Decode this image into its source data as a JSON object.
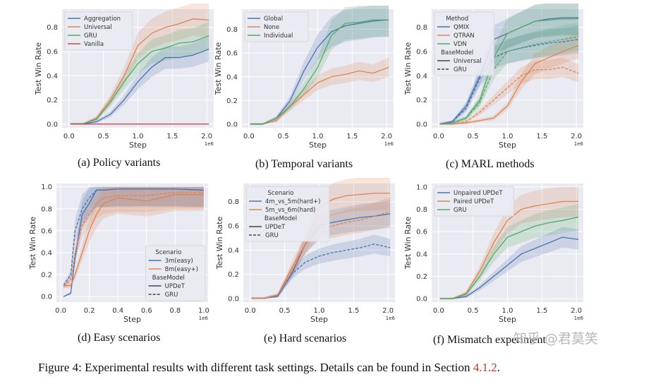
{
  "colors": {
    "blue": "#4c72b0",
    "orange": "#dd8452",
    "green": "#55a868",
    "red": "#c44e52",
    "plot_bg": "#eaeaf2"
  },
  "captions": [
    "(a) Policy variants",
    "(b) Temporal variants",
    "(c) MARL methods",
    "(d) Easy scenarios",
    "(e) Hard scenarios",
    "(f) Mismatch experiment"
  ],
  "figure_caption": {
    "text": "Figure 4: Experimental results with different task settings. Details can be found in Section ",
    "ref": "4.1.2",
    "end": "."
  },
  "watermark": "知乎 @君莫笑",
  "chart_data": [
    {
      "type": "line",
      "xlabel": "Step",
      "ylabel": "Test Win Rate",
      "x_offset_label": "1e6",
      "xlim": [
        -0.1,
        2.1
      ],
      "ylim": [
        -0.03,
        0.95
      ],
      "xticks": [
        0.0,
        0.5,
        1.0,
        1.5,
        2.0
      ],
      "yticks": [
        0.0,
        0.2,
        0.4,
        0.6,
        0.8
      ],
      "grid": true,
      "legend_position": "top-left",
      "legend": [
        {
          "label": "Aggregation",
          "color": "#4c72b0"
        },
        {
          "label": "Universal",
          "color": "#dd8452"
        },
        {
          "label": "GRU",
          "color": "#55a868"
        },
        {
          "label": "Vanilla",
          "color": "#c44e52"
        }
      ],
      "x": [
        0.02,
        0.2,
        0.4,
        0.6,
        0.8,
        1.0,
        1.2,
        1.4,
        1.6,
        1.8,
        2.03
      ],
      "series": [
        {
          "name": "Aggregation",
          "color": "#4c72b0",
          "dash": false,
          "values": [
            0,
            0,
            0.02,
            0.08,
            0.2,
            0.35,
            0.47,
            0.55,
            0.55,
            0.57,
            0.62
          ]
        },
        {
          "name": "Universal",
          "color": "#dd8452",
          "dash": false,
          "values": [
            0,
            0,
            0.05,
            0.2,
            0.4,
            0.65,
            0.75,
            0.8,
            0.83,
            0.87,
            0.86
          ]
        },
        {
          "name": "GRU",
          "color": "#55a868",
          "dash": false,
          "values": [
            0,
            0,
            0.04,
            0.18,
            0.35,
            0.5,
            0.6,
            0.63,
            0.67,
            0.68,
            0.73
          ]
        },
        {
          "name": "Vanilla",
          "color": "#c44e52",
          "dash": false,
          "values": [
            0,
            0,
            0,
            0,
            0,
            0,
            0,
            0,
            0,
            0,
            0
          ]
        }
      ]
    },
    {
      "type": "line",
      "xlabel": "Step",
      "ylabel": "Test Win Rate",
      "x_offset_label": "1e6",
      "xlim": [
        -0.1,
        2.1
      ],
      "ylim": [
        -0.03,
        0.97
      ],
      "xticks": [
        0.0,
        0.5,
        1.0,
        1.5,
        2.0
      ],
      "yticks": [
        0.0,
        0.2,
        0.4,
        0.6,
        0.8
      ],
      "grid": true,
      "legend_position": "top-left",
      "legend": [
        {
          "label": "Global",
          "color": "#4c72b0"
        },
        {
          "label": "None",
          "color": "#dd8452"
        },
        {
          "label": "Individual",
          "color": "#55a868"
        }
      ],
      "x": [
        0.02,
        0.2,
        0.4,
        0.6,
        0.8,
        1.0,
        1.2,
        1.4,
        1.6,
        1.8,
        2.03
      ],
      "series": [
        {
          "name": "Global",
          "color": "#4c72b0",
          "dash": false,
          "values": [
            0,
            0,
            0.05,
            0.2,
            0.45,
            0.65,
            0.78,
            0.83,
            0.85,
            0.87,
            0.88
          ]
        },
        {
          "name": "None",
          "color": "#dd8452",
          "dash": false,
          "values": [
            0,
            0,
            0.03,
            0.15,
            0.25,
            0.35,
            0.4,
            0.42,
            0.45,
            0.43,
            0.48
          ]
        },
        {
          "name": "Individual",
          "color": "#55a868",
          "dash": false,
          "values": [
            0,
            0,
            0.05,
            0.15,
            0.3,
            0.48,
            0.75,
            0.85,
            0.86,
            0.88,
            0.88
          ]
        }
      ]
    },
    {
      "type": "line",
      "xlabel": "Step",
      "ylabel": "Test Win Rate",
      "x_offset_label": "1e6",
      "xlim": [
        -0.1,
        2.1
      ],
      "ylim": [
        -0.03,
        0.95
      ],
      "xticks": [
        0.0,
        0.5,
        1.0,
        1.5,
        2.0
      ],
      "yticks": [
        0.0,
        0.2,
        0.4,
        0.6,
        0.8
      ],
      "grid": true,
      "legend_position": "top-left",
      "legend": [
        {
          "label": "Method",
          "title": true
        },
        {
          "label": "QMIX",
          "color": "#4c72b0"
        },
        {
          "label": "QTRAN",
          "color": "#dd8452"
        },
        {
          "label": "VDN",
          "color": "#55a868"
        },
        {
          "label": "BaseModel",
          "title": true
        },
        {
          "label": "Universal",
          "color": "#444444"
        },
        {
          "label": "GRU",
          "color": "#444444",
          "dash": true
        }
      ],
      "x": [
        0.02,
        0.2,
        0.4,
        0.6,
        0.8,
        1.0,
        1.2,
        1.4,
        1.6,
        1.8,
        2.03
      ],
      "series": [
        {
          "name": "QMIX Universal",
          "color": "#4c72b0",
          "dash": false,
          "values": [
            0,
            0.02,
            0.15,
            0.4,
            0.7,
            0.75,
            0.8,
            0.85,
            0.87,
            0.88,
            0.88
          ]
        },
        {
          "name": "QMIX GRU",
          "color": "#4c72b0",
          "dash": true,
          "values": [
            0,
            0.02,
            0.13,
            0.38,
            0.55,
            0.6,
            0.63,
            0.65,
            0.67,
            0.68,
            0.7
          ]
        },
        {
          "name": "QTRAN Universal",
          "color": "#dd8452",
          "dash": false,
          "values": [
            0,
            0,
            0.01,
            0.03,
            0.05,
            0.15,
            0.35,
            0.5,
            0.55,
            0.6,
            0.65
          ]
        },
        {
          "name": "QTRAN GRU",
          "color": "#dd8452",
          "dash": true,
          "values": [
            0,
            0,
            0.02,
            0.1,
            0.2,
            0.3,
            0.4,
            0.45,
            0.45,
            0.47,
            0.42
          ]
        },
        {
          "name": "VDN Universal",
          "color": "#55a868",
          "dash": false,
          "values": [
            0,
            0.01,
            0.05,
            0.2,
            0.55,
            0.75,
            0.8,
            0.85,
            0.86,
            0.87,
            0.87
          ]
        },
        {
          "name": "VDN GRU",
          "color": "#55a868",
          "dash": true,
          "values": [
            0,
            0.01,
            0.05,
            0.18,
            0.45,
            0.6,
            0.63,
            0.66,
            0.68,
            0.7,
            0.72
          ]
        }
      ]
    },
    {
      "type": "line",
      "xlabel": "Step",
      "ylabel": "Test Win Rate",
      "x_offset_label": "1e6",
      "xlim": [
        -0.03,
        1.03
      ],
      "ylim": [
        -0.05,
        1.03
      ],
      "xticks": [
        0.0,
        0.2,
        0.4,
        0.6,
        0.8,
        1.0
      ],
      "yticks": [
        0.0,
        0.2,
        0.4,
        0.6,
        0.8,
        1.0
      ],
      "grid": true,
      "legend_position": "bottom-right",
      "legend": [
        {
          "label": "Scenario",
          "title": true
        },
        {
          "label": "3m(easy)",
          "color": "#4c72b0"
        },
        {
          "label": "8m(easy+)",
          "color": "#dd8452"
        },
        {
          "label": "BaseModel",
          "title": true
        },
        {
          "label": "UPDeT",
          "color": "#444444"
        },
        {
          "label": "GRU",
          "color": "#444444",
          "dash": true
        }
      ],
      "x": [
        0.02,
        0.07,
        0.1,
        0.15,
        0.2,
        0.25,
        0.3,
        0.4,
        0.6,
        0.8,
        1.0
      ],
      "series": [
        {
          "name": "3m(easy) UPDeT",
          "color": "#4c72b0",
          "dash": false,
          "values": [
            0,
            0.03,
            0.35,
            0.75,
            0.85,
            0.97,
            0.97,
            0.98,
            0.98,
            0.98,
            0.97
          ]
        },
        {
          "name": "3m(easy) GRU",
          "color": "#4c72b0",
          "dash": true,
          "values": [
            0.1,
            0.2,
            0.6,
            0.8,
            0.9,
            0.97,
            0.97,
            0.98,
            0.98,
            0.98,
            0.97
          ]
        },
        {
          "name": "8m(easy+) UPDeT",
          "color": "#dd8452",
          "dash": false,
          "values": [
            0.1,
            0.1,
            0.2,
            0.4,
            0.6,
            0.75,
            0.85,
            0.9,
            0.87,
            0.93,
            0.93
          ]
        },
        {
          "name": "8m(easy+) GRU",
          "color": "#dd8452",
          "dash": true,
          "values": [
            0.1,
            0.15,
            0.4,
            0.65,
            0.75,
            0.85,
            0.9,
            0.92,
            0.92,
            0.95,
            0.95
          ]
        }
      ]
    },
    {
      "type": "line",
      "xlabel": "Step",
      "ylabel": "Test Win Rate",
      "x_offset_label": "1e6",
      "xlim": [
        -0.1,
        2.1
      ],
      "ylim": [
        -0.03,
        0.95
      ],
      "xticks": [
        0.0,
        0.5,
        1.0,
        1.5,
        2.0
      ],
      "yticks": [
        0.0,
        0.2,
        0.4,
        0.6,
        0.8
      ],
      "grid": true,
      "legend_position": "top-left",
      "legend": [
        {
          "label": "Scenario",
          "title": true
        },
        {
          "label": "4m_vs_5m(hard+)",
          "color": "#4c72b0"
        },
        {
          "label": "5m_vs_6m(hard)",
          "color": "#dd8452"
        },
        {
          "label": "BaseModel",
          "title": true
        },
        {
          "label": "UPDeT",
          "color": "#444444"
        },
        {
          "label": "GRU",
          "color": "#444444",
          "dash": true
        }
      ],
      "x": [
        0.02,
        0.2,
        0.4,
        0.6,
        0.8,
        1.0,
        1.2,
        1.4,
        1.6,
        1.8,
        2.03
      ],
      "series": [
        {
          "name": "4m_vs_5m(hard+) UPDeT",
          "color": "#4c72b0",
          "dash": false,
          "values": [
            0,
            0,
            0.02,
            0.2,
            0.45,
            0.6,
            0.63,
            0.65,
            0.67,
            0.68,
            0.7
          ]
        },
        {
          "name": "4m_vs_5m(hard+) GRU",
          "color": "#4c72b0",
          "dash": true,
          "values": [
            0,
            0,
            0.02,
            0.2,
            0.3,
            0.35,
            0.38,
            0.4,
            0.42,
            0.45,
            0.42
          ]
        },
        {
          "name": "5m_vs_6m(hard) UPDeT",
          "color": "#dd8452",
          "dash": false,
          "values": [
            0,
            0,
            0.03,
            0.25,
            0.45,
            0.75,
            0.82,
            0.85,
            0.86,
            0.87,
            0.87
          ]
        },
        {
          "name": "5m_vs_6m(hard) GRU",
          "color": "#dd8452",
          "dash": true,
          "values": [
            0,
            0,
            0.03,
            0.22,
            0.45,
            0.58,
            0.6,
            0.63,
            0.65,
            0.68,
            0.72
          ]
        }
      ]
    },
    {
      "type": "line",
      "xlabel": "Step",
      "ylabel": "Test Win Rate",
      "x_offset_label": "1e6",
      "xlim": [
        -0.1,
        2.1
      ],
      "ylim": [
        -0.03,
        1.03
      ],
      "xticks": [
        0.0,
        0.5,
        1.0,
        1.5,
        2.0
      ],
      "yticks": [
        0.0,
        0.2,
        0.4,
        0.6,
        0.8,
        1.0
      ],
      "grid": true,
      "legend_position": "top-left",
      "legend": [
        {
          "label": "Unpaired UPDeT",
          "color": "#4c72b0"
        },
        {
          "label": "Paired UPDeT",
          "color": "#dd8452"
        },
        {
          "label": "GRU",
          "color": "#55a868"
        }
      ],
      "x": [
        0.02,
        0.2,
        0.4,
        0.6,
        0.8,
        1.0,
        1.2,
        1.4,
        1.6,
        1.8,
        2.03
      ],
      "series": [
        {
          "name": "Unpaired UPDeT",
          "color": "#4c72b0",
          "dash": false,
          "values": [
            0,
            0,
            0.02,
            0.1,
            0.2,
            0.3,
            0.4,
            0.45,
            0.5,
            0.55,
            0.53
          ]
        },
        {
          "name": "Paired UPDeT",
          "color": "#dd8452",
          "dash": false,
          "values": [
            0,
            0,
            0.05,
            0.25,
            0.5,
            0.7,
            0.8,
            0.83,
            0.85,
            0.87,
            0.87
          ]
        },
        {
          "name": "GRU",
          "color": "#55a868",
          "dash": false,
          "values": [
            0,
            0,
            0.04,
            0.2,
            0.4,
            0.55,
            0.6,
            0.65,
            0.68,
            0.7,
            0.73
          ]
        }
      ]
    }
  ]
}
